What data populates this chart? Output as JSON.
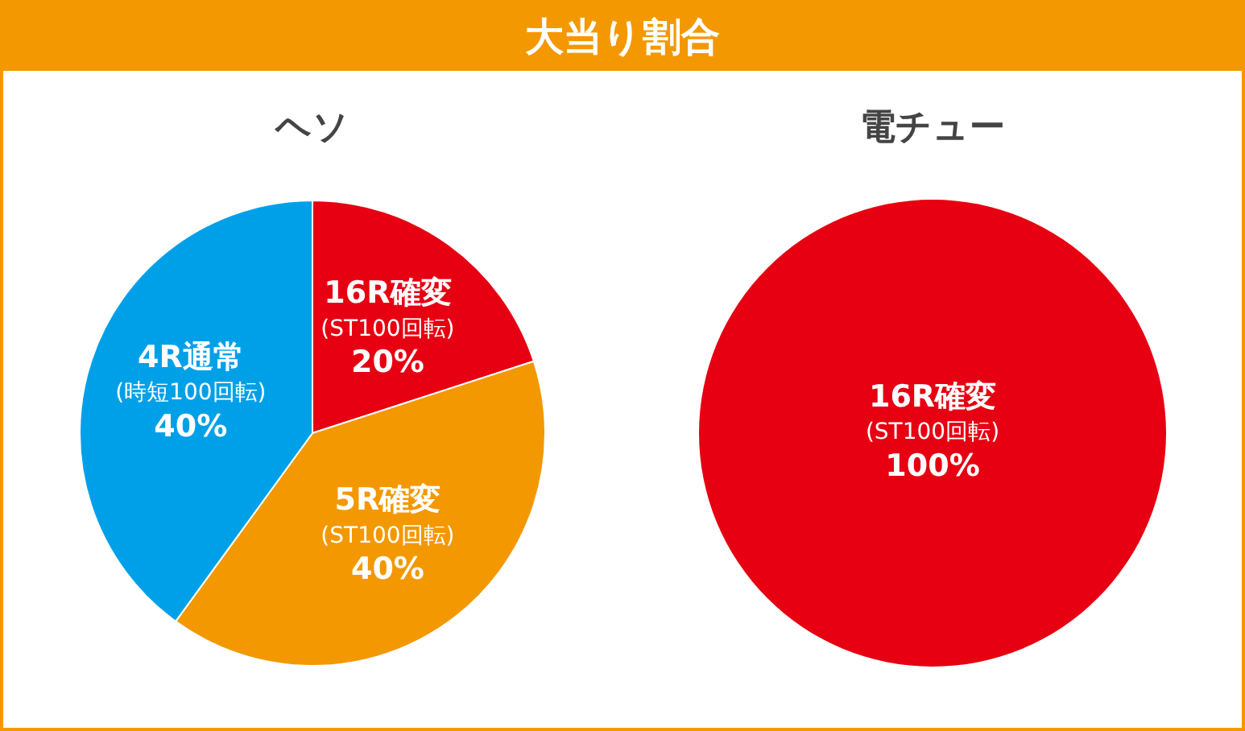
{
  "chart_data": [
    {
      "type": "pie",
      "title": "大当り割合",
      "subtitle": "ヘソ",
      "categories": [
        "16R確変\n(ST100回転)",
        "5R確変\n(ST100回転)",
        "4R通常\n(時短100回転)"
      ],
      "values": [
        20,
        40,
        40
      ],
      "value_labels": [
        "20%",
        "40%",
        "40%"
      ],
      "colors": [
        "#e60012",
        "#f39800",
        "#00a0e9"
      ],
      "legend": false
    },
    {
      "type": "pie",
      "subtitle": "電チュー",
      "categories": [
        "16R確変\n(ST100回転)"
      ],
      "values": [
        100
      ],
      "value_labels": [
        "100%"
      ],
      "colors": [
        "#e60012"
      ],
      "legend": false
    }
  ]
}
